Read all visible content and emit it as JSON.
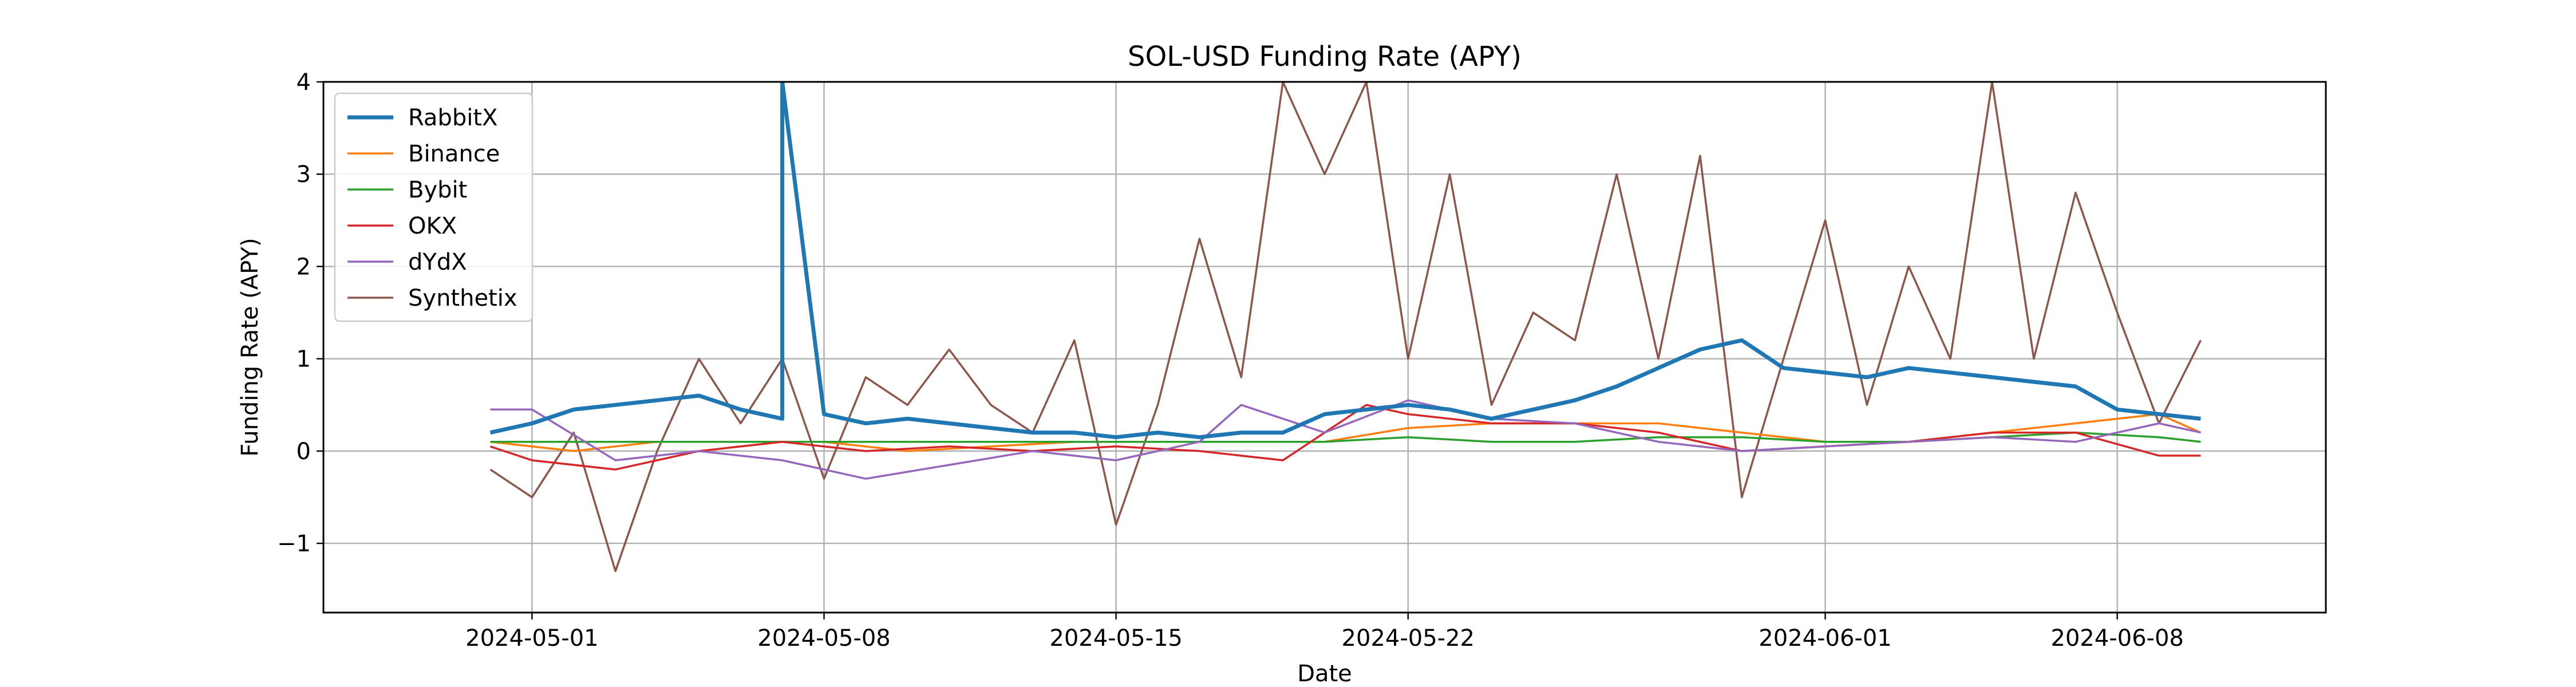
{
  "chart_data": {
    "type": "line",
    "title": "SOL-USD Funding Rate (APY)",
    "xlabel": "Date",
    "ylabel": "Funding Rate (APY)",
    "xlim": [
      "2024-04-26",
      "2024-06-13"
    ],
    "ylim": [
      -1.75,
      4.0
    ],
    "x_ticks": [
      "2024-05-01",
      "2024-05-08",
      "2024-05-15",
      "2024-05-22",
      "2024-06-01",
      "2024-06-08"
    ],
    "y_ticks": [
      -1,
      0,
      1,
      2,
      3,
      4
    ],
    "y_tick_labels": [
      "−1",
      "0",
      "1",
      "2",
      "3",
      "4"
    ],
    "grid": true,
    "legend_position": "top-left",
    "series": [
      {
        "name": "RabbitX",
        "color": "#1f77b4",
        "x": [
          "2024-04-30",
          "2024-05-01",
          "2024-05-02",
          "2024-05-03",
          "2024-05-04",
          "2024-05-05",
          "2024-05-06",
          "2024-05-07",
          "2024-05-07",
          "2024-05-08",
          "2024-05-09",
          "2024-05-10",
          "2024-05-11",
          "2024-05-12",
          "2024-05-13",
          "2024-05-14",
          "2024-05-15",
          "2024-05-16",
          "2024-05-17",
          "2024-05-18",
          "2024-05-19",
          "2024-05-20",
          "2024-05-21",
          "2024-05-22",
          "2024-05-23",
          "2024-05-24",
          "2024-05-25",
          "2024-05-26",
          "2024-05-27",
          "2024-05-28",
          "2024-05-29",
          "2024-05-30",
          "2024-05-31",
          "2024-06-01",
          "2024-06-02",
          "2024-06-03",
          "2024-06-04",
          "2024-06-05",
          "2024-06-06",
          "2024-06-07",
          "2024-06-08",
          "2024-06-09",
          "2024-06-10"
        ],
        "y": [
          0.2,
          0.3,
          0.45,
          0.5,
          0.55,
          0.6,
          0.45,
          0.35,
          4.0,
          0.4,
          0.3,
          0.35,
          0.3,
          0.25,
          0.2,
          0.2,
          0.15,
          0.2,
          0.15,
          0.2,
          0.2,
          0.4,
          0.45,
          0.5,
          0.45,
          0.35,
          0.45,
          0.55,
          0.7,
          0.9,
          1.1,
          1.2,
          0.9,
          0.85,
          0.8,
          0.9,
          0.85,
          0.8,
          0.75,
          0.7,
          0.45,
          0.4,
          0.35
        ]
      },
      {
        "name": "Binance",
        "color": "#ff7f0e",
        "x": [
          "2024-04-30",
          "2024-05-02",
          "2024-05-04",
          "2024-05-06",
          "2024-05-08",
          "2024-05-10",
          "2024-05-12",
          "2024-05-14",
          "2024-05-16",
          "2024-05-18",
          "2024-05-20",
          "2024-05-22",
          "2024-05-24",
          "2024-05-26",
          "2024-05-28",
          "2024-05-30",
          "2024-06-01",
          "2024-06-03",
          "2024-06-05",
          "2024-06-07",
          "2024-06-09",
          "2024-06-10"
        ],
        "y": [
          0.1,
          0.0,
          0.1,
          0.1,
          0.1,
          0.0,
          0.05,
          0.1,
          0.1,
          0.1,
          0.1,
          0.25,
          0.3,
          0.3,
          0.3,
          0.2,
          0.1,
          0.1,
          0.2,
          0.3,
          0.4,
          0.2
        ]
      },
      {
        "name": "Bybit",
        "color": "#2ca02c",
        "x": [
          "2024-04-30",
          "2024-05-02",
          "2024-05-04",
          "2024-05-06",
          "2024-05-08",
          "2024-05-10",
          "2024-05-12",
          "2024-05-14",
          "2024-05-16",
          "2024-05-18",
          "2024-05-20",
          "2024-05-22",
          "2024-05-24",
          "2024-05-26",
          "2024-05-28",
          "2024-05-30",
          "2024-06-01",
          "2024-06-03",
          "2024-06-05",
          "2024-06-07",
          "2024-06-09",
          "2024-06-10"
        ],
        "y": [
          0.1,
          0.1,
          0.1,
          0.1,
          0.1,
          0.1,
          0.1,
          0.1,
          0.1,
          0.1,
          0.1,
          0.15,
          0.1,
          0.1,
          0.15,
          0.15,
          0.1,
          0.1,
          0.15,
          0.2,
          0.15,
          0.1
        ]
      },
      {
        "name": "OKX",
        "color": "#d62728",
        "x": [
          "2024-04-30",
          "2024-05-01",
          "2024-05-03",
          "2024-05-05",
          "2024-05-07",
          "2024-05-09",
          "2024-05-11",
          "2024-05-13",
          "2024-05-15",
          "2024-05-17",
          "2024-05-19",
          "2024-05-21",
          "2024-05-22",
          "2024-05-24",
          "2024-05-26",
          "2024-05-28",
          "2024-05-30",
          "2024-06-01",
          "2024-06-03",
          "2024-06-05",
          "2024-06-07",
          "2024-06-09",
          "2024-06-10"
        ],
        "y": [
          0.05,
          -0.1,
          -0.2,
          0.0,
          0.1,
          0.0,
          0.05,
          0.0,
          0.05,
          0.0,
          -0.1,
          0.5,
          0.4,
          0.3,
          0.3,
          0.2,
          0.0,
          0.05,
          0.1,
          0.2,
          0.2,
          -0.05,
          -0.05
        ]
      },
      {
        "name": "dYdX",
        "color": "#9467bd",
        "x": [
          "2024-04-30",
          "2024-05-01",
          "2024-05-03",
          "2024-05-05",
          "2024-05-07",
          "2024-05-09",
          "2024-05-11",
          "2024-05-13",
          "2024-05-15",
          "2024-05-17",
          "2024-05-18",
          "2024-05-20",
          "2024-05-22",
          "2024-05-24",
          "2024-05-26",
          "2024-05-28",
          "2024-05-30",
          "2024-06-01",
          "2024-06-03",
          "2024-06-05",
          "2024-06-07",
          "2024-06-09",
          "2024-06-10"
        ],
        "y": [
          0.45,
          0.45,
          -0.1,
          0.0,
          -0.1,
          -0.3,
          -0.15,
          0.0,
          -0.1,
          0.1,
          0.5,
          0.2,
          0.55,
          0.35,
          0.3,
          0.1,
          0.0,
          0.05,
          0.1,
          0.15,
          0.1,
          0.3,
          0.2
        ]
      },
      {
        "name": "Synthetix",
        "color": "#8c564b",
        "x": [
          "2024-04-30",
          "2024-05-01",
          "2024-05-02",
          "2024-05-03",
          "2024-05-04",
          "2024-05-05",
          "2024-05-06",
          "2024-05-07",
          "2024-05-08",
          "2024-05-09",
          "2024-05-10",
          "2024-05-11",
          "2024-05-12",
          "2024-05-13",
          "2024-05-14",
          "2024-05-15",
          "2024-05-16",
          "2024-05-17",
          "2024-05-18",
          "2024-05-19",
          "2024-05-20",
          "2024-05-21",
          "2024-05-22",
          "2024-05-23",
          "2024-05-24",
          "2024-05-25",
          "2024-05-26",
          "2024-05-27",
          "2024-05-28",
          "2024-05-29",
          "2024-05-30",
          "2024-05-31",
          "2024-06-01",
          "2024-06-02",
          "2024-06-03",
          "2024-06-04",
          "2024-06-05",
          "2024-06-06",
          "2024-06-07",
          "2024-06-08",
          "2024-06-09",
          "2024-06-10"
        ],
        "y": [
          -0.2,
          -0.5,
          0.2,
          -1.3,
          0.0,
          1.0,
          0.3,
          1.0,
          -0.3,
          0.8,
          0.5,
          1.1,
          0.5,
          0.2,
          1.2,
          -0.8,
          0.5,
          2.3,
          0.8,
          4.0,
          3.0,
          4.0,
          1.0,
          3.0,
          0.5,
          1.5,
          1.2,
          3.0,
          1.0,
          3.2,
          -0.5,
          1.0,
          2.5,
          0.5,
          2.0,
          1.0,
          4.0,
          1.0,
          2.8,
          1.5,
          0.3,
          1.2
        ]
      }
    ]
  }
}
